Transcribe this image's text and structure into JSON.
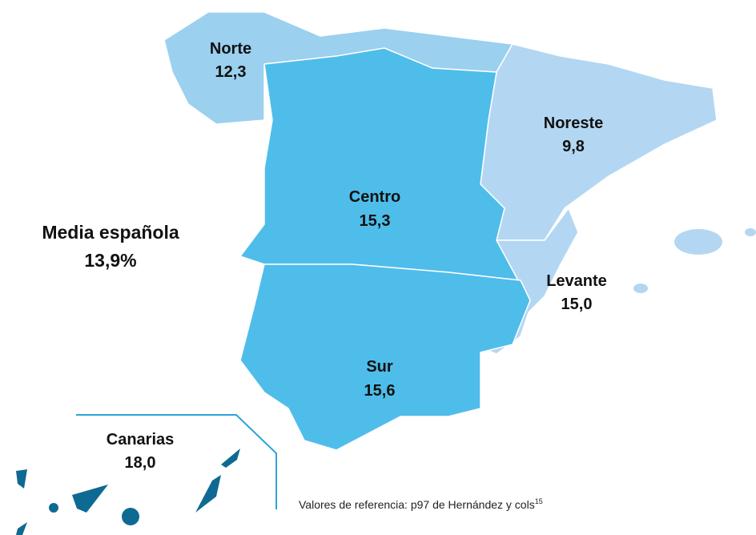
{
  "map": {
    "summary": {
      "label": "Media española",
      "value": "13,9%"
    },
    "regions": [
      {
        "name": "Norte",
        "value": "12,3",
        "color": "#9bd0ef"
      },
      {
        "name": "Noreste",
        "value": "9,8",
        "color": "#b3d7f2"
      },
      {
        "name": "Centro",
        "value": "15,3",
        "color": "#4fbdea"
      },
      {
        "name": "Levante",
        "value": "15,0",
        "color": "#b3d7f2"
      },
      {
        "name": "Sur",
        "value": "15,6",
        "color": "#4fbdea"
      },
      {
        "name": "Canarias",
        "value": "18,0",
        "color": "#0e6a92"
      }
    ],
    "footnote": {
      "text": "Valores de referencia: p97 de Hernández y cols",
      "ref": "15"
    }
  }
}
